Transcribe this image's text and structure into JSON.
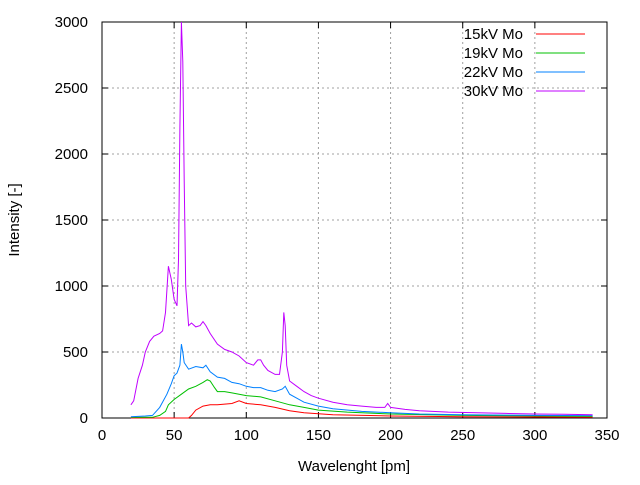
{
  "chart_data": {
    "type": "line",
    "title": "",
    "xlabel": "Wavelenght [pm]",
    "ylabel": "Intensity [-]",
    "xlim": [
      0,
      350
    ],
    "ylim": [
      0,
      3000
    ],
    "xticks": [
      0,
      50,
      100,
      150,
      200,
      250,
      300,
      350
    ],
    "yticks": [
      0,
      500,
      1000,
      1500,
      2000,
      2500,
      3000
    ],
    "grid": true,
    "legend_position": "top-right",
    "series": [
      {
        "name": "15kV Mo",
        "color": "#ff0000",
        "x": [
          20,
          60,
          62,
          65,
          70,
          75,
          80,
          90,
          95,
          100,
          110,
          120,
          130,
          140,
          160,
          200,
          250,
          340
        ],
        "y": [
          0,
          0,
          20,
          60,
          90,
          100,
          100,
          110,
          130,
          110,
          100,
          80,
          55,
          40,
          25,
          15,
          10,
          5
        ]
      },
      {
        "name": "19kV Mo",
        "color": "#00c000",
        "x": [
          20,
          35,
          40,
          44,
          46,
          50,
          55,
          60,
          65,
          70,
          73,
          75,
          78,
          80,
          85,
          90,
          95,
          100,
          110,
          120,
          130,
          140,
          150,
          170,
          200,
          250,
          340
        ],
        "y": [
          5,
          5,
          20,
          50,
          100,
          140,
          180,
          220,
          240,
          270,
          290,
          280,
          230,
          200,
          200,
          190,
          180,
          170,
          160,
          130,
          100,
          80,
          60,
          45,
          30,
          20,
          12
        ]
      },
      {
        "name": "22kV Mo",
        "color": "#0080ff",
        "x": [
          20,
          30,
          35,
          40,
          45,
          48,
          50,
          52,
          54,
          55,
          56,
          57,
          60,
          65,
          70,
          72,
          75,
          80,
          85,
          90,
          95,
          100,
          105,
          110,
          115,
          120,
          125,
          127,
          130,
          135,
          140,
          150,
          160,
          180,
          200,
          220,
          250,
          300,
          340
        ],
        "y": [
          10,
          15,
          20,
          80,
          180,
          260,
          320,
          340,
          400,
          560,
          500,
          420,
          370,
          390,
          380,
          400,
          350,
          310,
          300,
          270,
          260,
          240,
          230,
          230,
          210,
          200,
          220,
          240,
          180,
          150,
          120,
          90,
          70,
          50,
          40,
          30,
          25,
          20,
          18
        ]
      },
      {
        "name": "30kV Mo",
        "color": "#c000ff",
        "x": [
          20,
          22,
          25,
          28,
          30,
          33,
          36,
          40,
          42,
          44,
          46,
          48,
          50,
          52,
          53,
          54,
          55,
          56,
          57,
          58,
          60,
          62,
          65,
          68,
          70,
          72,
          75,
          80,
          85,
          90,
          95,
          100,
          105,
          108,
          110,
          112,
          115,
          120,
          123,
          125,
          126,
          127,
          128,
          130,
          135,
          140,
          145,
          150,
          160,
          170,
          180,
          190,
          196,
          198,
          200,
          210,
          220,
          240,
          260,
          280,
          300,
          320,
          340
        ],
        "y": [
          100,
          130,
          300,
          400,
          500,
          580,
          620,
          640,
          660,
          800,
          1150,
          1050,
          900,
          850,
          1200,
          2200,
          3000,
          2700,
          1800,
          1000,
          700,
          720,
          690,
          700,
          730,
          700,
          640,
          560,
          520,
          500,
          470,
          420,
          400,
          440,
          440,
          400,
          360,
          330,
          330,
          500,
          800,
          700,
          400,
          280,
          240,
          200,
          170,
          150,
          120,
          100,
          90,
          80,
          80,
          110,
          80,
          65,
          55,
          45,
          40,
          35,
          30,
          28,
          25
        ]
      }
    ]
  }
}
